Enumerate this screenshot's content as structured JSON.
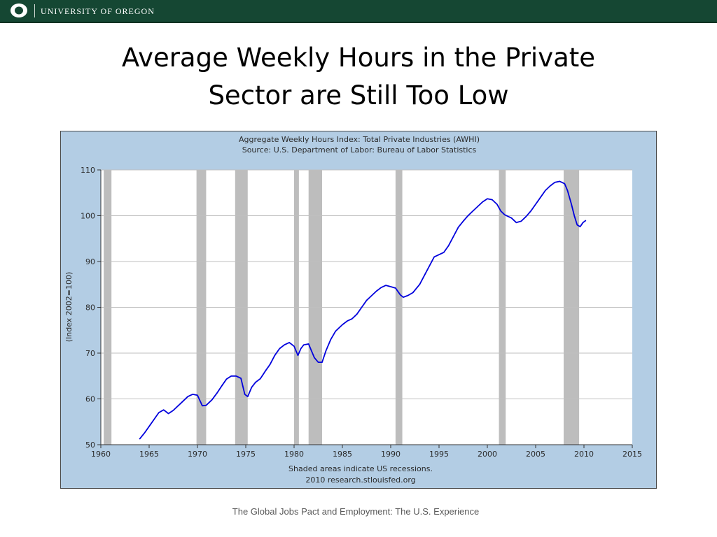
{
  "header": {
    "university_name": "UNIVERSITY OF OREGON",
    "brand_color": "#154733"
  },
  "slide": {
    "title_line1": "Average Weekly Hours in the Private",
    "title_line2": "Sector are Still Too Low",
    "footer": "The Global Jobs Pact and Employment: The U.S. Experience"
  },
  "chart_data": {
    "type": "line",
    "title": "Aggregate Weekly Hours Index: Total Private Industries (AWHI)",
    "subtitle": "Source: U.S. Department of Labor: Bureau of Labor Statistics",
    "xlabel": "",
    "ylabel": "(Index 2002=100)",
    "xlim": [
      1960,
      2015
    ],
    "ylim": [
      50,
      110
    ],
    "x_ticks": [
      "1960",
      "1965",
      "1970",
      "1975",
      "1980",
      "1985",
      "1990",
      "1995",
      "2000",
      "2005",
      "2010",
      "2015"
    ],
    "y_ticks": [
      "50",
      "60",
      "70",
      "80",
      "90",
      "100",
      "110"
    ],
    "grid": true,
    "line_color": "#0000dd",
    "recession_color": "#bdbdbd",
    "recessions": [
      [
        1960.3,
        1961.1
      ],
      [
        1969.9,
        1970.9
      ],
      [
        1973.9,
        1975.2
      ],
      [
        1980.0,
        1980.5
      ],
      [
        1981.5,
        1982.9
      ],
      [
        1990.5,
        1991.2
      ],
      [
        2001.2,
        2001.9
      ],
      [
        2007.9,
        2009.5
      ]
    ],
    "notes": [
      "Shaded areas indicate US recessions.",
      "2010 research.stlouisfed.org"
    ],
    "series": [
      {
        "x": [
          1964.0,
          1964.5,
          1965.0,
          1965.5,
          1966.0,
          1966.5,
          1967.0,
          1967.5,
          1968.0,
          1968.5,
          1969.0,
          1969.5,
          1970.0,
          1970.5,
          1970.9,
          1971.5,
          1972.0,
          1972.5,
          1973.0,
          1973.5,
          1974.0,
          1974.5,
          1974.9,
          1975.2,
          1975.6,
          1976.0,
          1976.5,
          1977.0,
          1977.5,
          1978.0,
          1978.5,
          1979.0,
          1979.5,
          1980.0,
          1980.4,
          1980.7,
          1981.0,
          1981.5,
          1981.8,
          1982.1,
          1982.5,
          1982.9,
          1983.3,
          1983.8,
          1984.3,
          1985.0,
          1985.5,
          1986.0,
          1986.5,
          1987.0,
          1987.5,
          1988.0,
          1988.5,
          1989.0,
          1989.5,
          1990.0,
          1990.5,
          1991.0,
          1991.3,
          1991.8,
          1992.3,
          1993.0,
          1993.5,
          1994.0,
          1994.5,
          1995.0,
          1995.5,
          1996.0,
          1996.5,
          1997.0,
          1997.5,
          1998.0,
          1998.5,
          1999.0,
          1999.5,
          2000.0,
          2000.5,
          2001.0,
          2001.4,
          2001.8,
          2002.5,
          2003.0,
          2003.5,
          2004.0,
          2004.5,
          2005.0,
          2005.5,
          2006.0,
          2006.5,
          2007.0,
          2007.5,
          2008.0,
          2008.3,
          2008.7,
          2009.0,
          2009.3,
          2009.6,
          2009.9,
          2010.2
        ],
        "y": [
          51.2,
          52.5,
          54.0,
          55.5,
          57.0,
          57.6,
          56.8,
          57.5,
          58.5,
          59.5,
          60.5,
          61.0,
          60.8,
          58.5,
          58.6,
          59.8,
          61.2,
          62.8,
          64.3,
          65.0,
          65.0,
          64.5,
          61.0,
          60.5,
          62.5,
          63.6,
          64.4,
          66.0,
          67.5,
          69.5,
          71.0,
          71.8,
          72.3,
          71.5,
          69.5,
          71.0,
          71.8,
          72.0,
          70.5,
          69.0,
          68.0,
          68.0,
          70.5,
          73.0,
          74.8,
          76.2,
          77.0,
          77.5,
          78.5,
          80.0,
          81.5,
          82.5,
          83.5,
          84.3,
          84.8,
          84.5,
          84.2,
          82.7,
          82.2,
          82.6,
          83.2,
          85.0,
          87.0,
          89.0,
          91.0,
          91.5,
          92.0,
          93.5,
          95.5,
          97.5,
          98.8,
          100.0,
          101.0,
          102.0,
          103.0,
          103.7,
          103.5,
          102.5,
          101.0,
          100.2,
          99.5,
          98.5,
          98.8,
          99.8,
          101.0,
          102.5,
          104.0,
          105.5,
          106.5,
          107.3,
          107.5,
          107.0,
          105.5,
          102.5,
          100.0,
          98.0,
          97.6,
          98.5,
          99.0
        ]
      }
    ]
  }
}
